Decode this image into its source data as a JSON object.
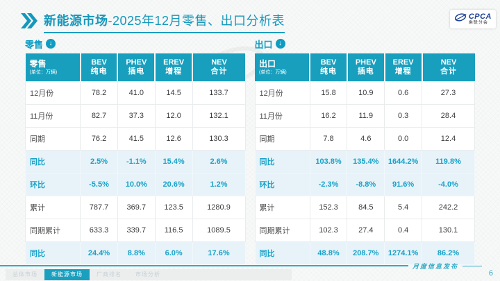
{
  "header": {
    "title_bold": "新能源市场",
    "title_rest": "-2025年12月零售、出口分析表",
    "logo_brand": "CPCA",
    "logo_sub": "乘联分会"
  },
  "tables": [
    {
      "section_label": "零售",
      "corner_label": "零售",
      "unit": "(单位：万辆)",
      "columns": [
        {
          "l1": "BEV",
          "l2": "纯电"
        },
        {
          "l1": "PHEV",
          "l2": "插电"
        },
        {
          "l1": "EREV",
          "l2": "增程"
        },
        {
          "l1": "NEV",
          "l2": "合计"
        }
      ],
      "rows": [
        {
          "label": "12月份",
          "values": [
            "78.2",
            "41.0",
            "14.5",
            "133.7"
          ],
          "highlight": false
        },
        {
          "label": "11月份",
          "values": [
            "82.7",
            "37.3",
            "12.0",
            "132.1"
          ],
          "highlight": false
        },
        {
          "label": "同期",
          "values": [
            "76.2",
            "41.5",
            "12.6",
            "130.3"
          ],
          "highlight": false
        },
        {
          "label": "同比",
          "values": [
            "2.5%",
            "-1.1%",
            "15.4%",
            "2.6%"
          ],
          "highlight": true
        },
        {
          "label": "环比",
          "values": [
            "-5.5%",
            "10.0%",
            "20.6%",
            "1.2%"
          ],
          "highlight": true
        },
        {
          "label": "累计",
          "values": [
            "787.7",
            "369.7",
            "123.5",
            "1280.9"
          ],
          "highlight": false
        },
        {
          "label": "同期累计",
          "values": [
            "633.3",
            "339.7",
            "116.5",
            "1089.5"
          ],
          "highlight": false
        },
        {
          "label": "同比",
          "values": [
            "24.4%",
            "8.8%",
            "6.0%",
            "17.6%"
          ],
          "highlight": true
        }
      ]
    },
    {
      "section_label": "出口",
      "corner_label": "出口",
      "unit": "(单位：万辆)",
      "columns": [
        {
          "l1": "BEV",
          "l2": "纯电"
        },
        {
          "l1": "PHEV",
          "l2": "插电"
        },
        {
          "l1": "EREV",
          "l2": "增程"
        },
        {
          "l1": "NEV",
          "l2": "合计"
        }
      ],
      "rows": [
        {
          "label": "12月份",
          "values": [
            "15.8",
            "10.9",
            "0.6",
            "27.3"
          ],
          "highlight": false
        },
        {
          "label": "11月份",
          "values": [
            "16.2",
            "11.9",
            "0.3",
            "28.4"
          ],
          "highlight": false
        },
        {
          "label": "同期",
          "values": [
            "7.8",
            "4.6",
            "0.0",
            "12.4"
          ],
          "highlight": false
        },
        {
          "label": "同比",
          "values": [
            "103.8%",
            "135.4%",
            "1644.2%",
            "119.8%"
          ],
          "highlight": true
        },
        {
          "label": "环比",
          "values": [
            "-2.3%",
            "-8.8%",
            "91.6%",
            "-4.0%"
          ],
          "highlight": true
        },
        {
          "label": "累计",
          "values": [
            "152.3",
            "84.5",
            "5.4",
            "242.2"
          ],
          "highlight": false
        },
        {
          "label": "同期累计",
          "values": [
            "102.3",
            "27.4",
            "0.4",
            "130.1"
          ],
          "highlight": false
        },
        {
          "label": "同比",
          "values": [
            "48.8%",
            "208.7%",
            "1274.1%",
            "86.2%"
          ],
          "highlight": true
        }
      ]
    }
  ],
  "footer": {
    "tabs": [
      {
        "label": "总体市场",
        "active": false
      },
      {
        "label": "新能源市场",
        "active": true
      },
      {
        "label": "厂商排名",
        "active": false
      },
      {
        "label": "市场分析",
        "active": false
      }
    ],
    "publish_label": "月度信息发布",
    "page_number": "6"
  },
  "colors": {
    "accent_teal": "#189fbe",
    "highlight_bg": "#e7f3f9",
    "highlight_text": "#17a2c9",
    "logo_blue": "#1c3f94",
    "footer_teal": "#2fa9c6"
  }
}
